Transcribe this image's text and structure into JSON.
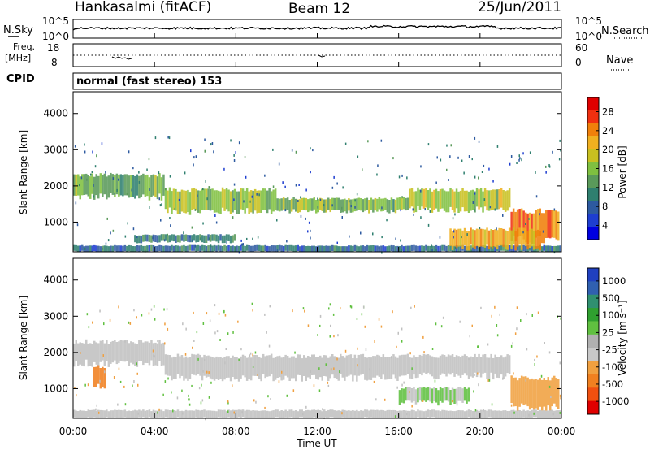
{
  "header": {
    "station": "Hankasalmi (fitACF)",
    "beam": "Beam 12",
    "date": "25/Jun/2011"
  },
  "noise_panel": {
    "left_label": "N.Sky",
    "right_label": "N.Search",
    "y_ticks": [
      "10^5",
      "10^0"
    ]
  },
  "freq_panel": {
    "left_label_1": "Freq.",
    "left_label_2": "[MHz]",
    "left_label_3": "CPID",
    "right_label": "Nave",
    "y_ticks_left": [
      "18",
      "8"
    ],
    "y_ticks_right": [
      "60",
      "0"
    ]
  },
  "cpid_text": "normal (fast stereo) 153",
  "axes": {
    "ylabel": "Slant Range [km]",
    "xlabel": "Time UT",
    "y_ticks": [
      "4000",
      "3000",
      "2000",
      "1000"
    ],
    "x_ticks": [
      "00:00",
      "04:00",
      "08:00",
      "12:00",
      "16:00",
      "20:00",
      "00:00"
    ]
  },
  "power_colorbar": {
    "label": "Power [dB]",
    "ticks": [
      "28",
      "24",
      "20",
      "16",
      "12",
      "8",
      "4"
    ],
    "colors": [
      "#e00000",
      "#f03010",
      "#f0800a",
      "#f0b020",
      "#c8c020",
      "#7fc040",
      "#5a9a5a",
      "#2f7f6f",
      "#2d5aa0",
      "#1e3ed0",
      "#0000e0"
    ]
  },
  "velocity_colorbar": {
    "label": "Velocity [m s⁻¹]",
    "ticks": [
      "1000",
      "500",
      "100",
      "25",
      "-25",
      "-100",
      "-500",
      "-1000"
    ],
    "colors": [
      "#2040c0",
      "#3060b0",
      "#309070",
      "#30a030",
      "#60c040",
      "#b0b0b0",
      "#c8c8c8",
      "#f0a040",
      "#f08020",
      "#f05010",
      "#e00000"
    ]
  },
  "chart_data": {
    "type": "heatmap",
    "title": "Hankasalmi (fitACF) Beam 12 25/Jun/2011",
    "xlabel": "Time UT",
    "ylabel": "Slant Range [km]",
    "x_ticks": [
      "00:00",
      "04:00",
      "08:00",
      "12:00",
      "16:00",
      "20:00",
      "00:00"
    ],
    "xlim_hours": [
      0,
      24
    ],
    "ylim_km": [
      180,
      4600
    ],
    "panels": [
      {
        "name": "Power [dB]",
        "colorbar_range": [
          0,
          32
        ],
        "bands": [
          {
            "t_start": 0.0,
            "t_end": 4.5,
            "range_km": [
              1700,
              2300
            ],
            "level": 14
          },
          {
            "t_start": 4.5,
            "t_end": 10.0,
            "range_km": [
              1300,
              1900
            ],
            "level": 16
          },
          {
            "t_start": 10.0,
            "t_end": 16.5,
            "range_km": [
              1300,
              1650
            ],
            "level": 15
          },
          {
            "t_start": 16.5,
            "t_end": 21.5,
            "range_km": [
              1350,
              1900
            ],
            "level": 18
          },
          {
            "t_start": 21.5,
            "t_end": 23.9,
            "range_km": [
              500,
              1300
            ],
            "level": 26
          },
          {
            "t_start": 0.0,
            "t_end": 24.0,
            "range_km": [
              180,
              350
            ],
            "level": 8
          },
          {
            "t_start": 18.5,
            "t_end": 23.0,
            "range_km": [
              300,
              800
            ],
            "level": 22
          },
          {
            "t_start": 3.0,
            "t_end": 8.0,
            "range_km": [
              450,
              650
            ],
            "level": 10
          }
        ]
      },
      {
        "name": "Velocity [m s⁻¹]",
        "colorbar_range": [
          -1000,
          1000
        ],
        "bands": [
          {
            "t_start": 0.0,
            "t_end": 4.5,
            "range_km": [
              1700,
              2300
            ],
            "level": 0
          },
          {
            "t_start": 4.5,
            "t_end": 16.5,
            "range_km": [
              1300,
              1900
            ],
            "level": 0
          },
          {
            "t_start": 16.5,
            "t_end": 21.5,
            "range_km": [
              1350,
              1900
            ],
            "level": 0
          },
          {
            "t_start": 21.5,
            "t_end": 23.9,
            "range_km": [
              500,
              1300
            ],
            "level": -200
          },
          {
            "t_start": 1.0,
            "t_end": 1.6,
            "range_km": [
              1050,
              1600
            ],
            "level": -300
          },
          {
            "t_start": 16.0,
            "t_end": 19.5,
            "range_km": [
              600,
              1000
            ],
            "level": 60
          },
          {
            "t_start": 0.0,
            "t_end": 24.0,
            "range_km": [
              180,
              400
            ],
            "level": 0
          }
        ]
      }
    ]
  }
}
